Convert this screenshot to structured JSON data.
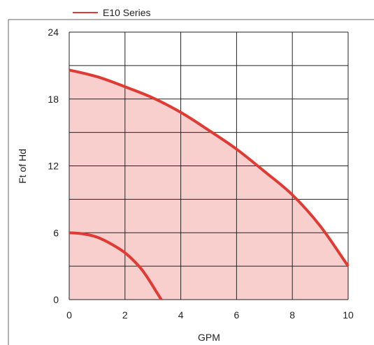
{
  "chart_data": {
    "type": "area",
    "legend": {
      "entries": [
        "E10 Series"
      ],
      "placement": "top-left",
      "color": "#e03a32"
    },
    "xlabel": "GPM",
    "ylabel": "Ft of Hd",
    "xlim": [
      0,
      10
    ],
    "ylim": [
      0,
      24
    ],
    "xticks": [
      0,
      2,
      4,
      6,
      8,
      10
    ],
    "yticks": [
      0,
      6,
      12,
      18,
      24
    ],
    "xtick_labels": [
      "0",
      "2",
      "4",
      "6",
      "8",
      "10"
    ],
    "ytick_labels": [
      "0",
      "6",
      "12",
      "18",
      "24"
    ],
    "grid": true,
    "series": [
      {
        "name": "E10 Series",
        "x": [
          0,
          1,
          2,
          3,
          4,
          5,
          6,
          7,
          8,
          9,
          10
        ],
        "y": [
          20.6,
          20.0,
          19.1,
          18.1,
          16.8,
          15.2,
          13.5,
          11.5,
          9.4,
          6.6,
          3.0
        ]
      },
      {
        "x": [
          0,
          0.5,
          1.0,
          1.5,
          2.0,
          2.5,
          2.8,
          3.1,
          3.3
        ],
        "y": [
          6.0,
          5.9,
          5.6,
          5.0,
          4.2,
          3.0,
          2.0,
          0.8,
          0
        ]
      }
    ],
    "colors": {
      "line": "#e03a32",
      "fill": "#f8cfcc",
      "grid": "#222222"
    }
  }
}
